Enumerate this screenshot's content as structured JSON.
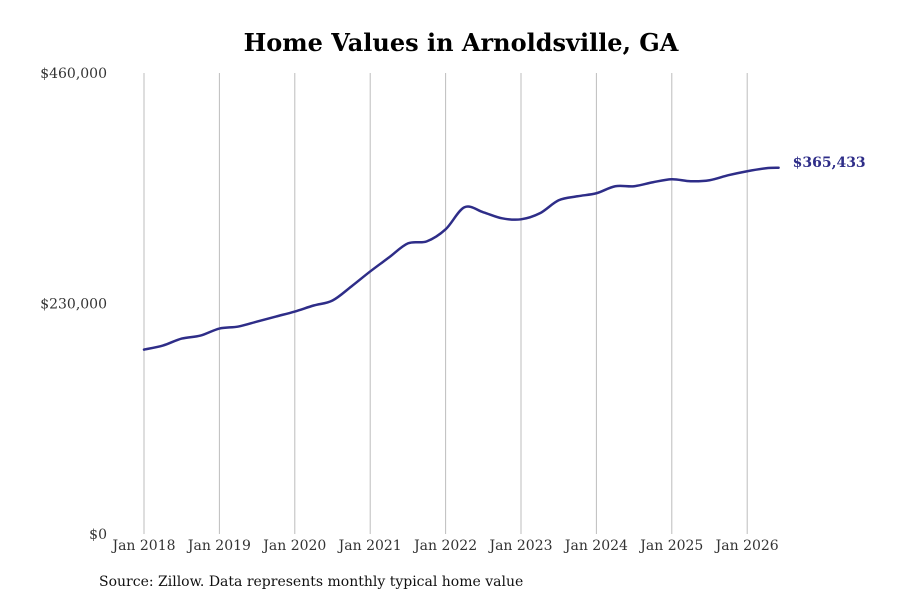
{
  "chart_data": {
    "type": "line",
    "title": "Home Values in Arnoldsville, GA",
    "source": "Source: Zillow. Data represents monthly typical home value",
    "ylim": [
      0,
      460000
    ],
    "yticks": [
      {
        "value": 0,
        "label": "$0"
      },
      {
        "value": 230000,
        "label": "$230,000"
      },
      {
        "value": 460000,
        "label": "$460,000"
      }
    ],
    "xticks": [
      {
        "date": "2018-01",
        "label": "Jan 2018"
      },
      {
        "date": "2019-01",
        "label": "Jan 2019"
      },
      {
        "date": "2020-01",
        "label": "Jan 2020"
      },
      {
        "date": "2021-01",
        "label": "Jan 2021"
      },
      {
        "date": "2022-01",
        "label": "Jan 2022"
      },
      {
        "date": "2023-01",
        "label": "Jan 2023"
      },
      {
        "date": "2024-01",
        "label": "Jan 2024"
      },
      {
        "date": "2025-01",
        "label": "Jan 2025"
      },
      {
        "date": "2026-01",
        "label": "Jan 2026"
      }
    ],
    "grid": "vertical",
    "line_color": "#2e2d88",
    "end_label": "$365,433",
    "series": [
      {
        "x": [
          "2018-01",
          "2018-04",
          "2018-07",
          "2018-10",
          "2019-01",
          "2019-04",
          "2019-07",
          "2019-10",
          "2020-01",
          "2020-04",
          "2020-07",
          "2020-10",
          "2021-01",
          "2021-04",
          "2021-07",
          "2021-10",
          "2022-01",
          "2022-04",
          "2022-07",
          "2022-10",
          "2023-01",
          "2023-04",
          "2023-07",
          "2023-10",
          "2024-01",
          "2024-04",
          "2024-07",
          "2024-10",
          "2025-01",
          "2025-04",
          "2025-07",
          "2025-10",
          "2026-01",
          "2026-04",
          "2026-06"
        ],
        "values": [
          184000,
          188000,
          195000,
          198000,
          205000,
          207000,
          212000,
          217000,
          222000,
          228000,
          233000,
          247000,
          262000,
          276000,
          290000,
          292000,
          304000,
          326000,
          321000,
          315000,
          314000,
          320000,
          333000,
          337000,
          340000,
          347000,
          347000,
          351000,
          354000,
          352000,
          353000,
          358000,
          362000,
          365000,
          365433
        ]
      }
    ]
  }
}
